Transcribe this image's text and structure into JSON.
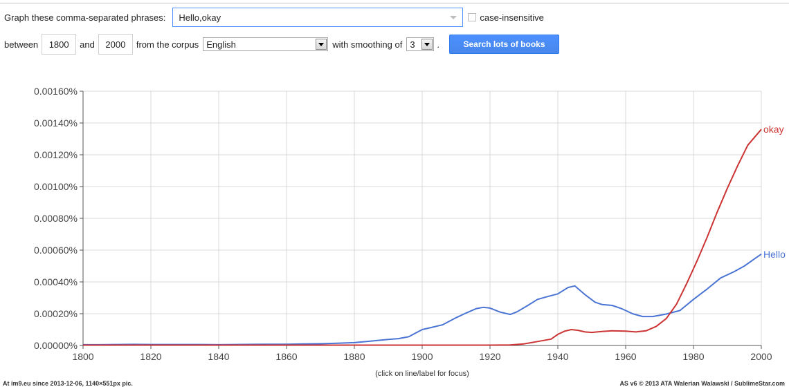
{
  "controls": {
    "phrases_label": "Graph these comma-separated phrases:",
    "phrases_value": "Hello,okay",
    "case_label": "case-insensitive",
    "between_label": "between",
    "start_year": "1800",
    "and_label": "and",
    "end_year": "2000",
    "corpus_label": "from the corpus",
    "corpus_value": "English",
    "smoothing_label": "with smoothing of",
    "smoothing_value": "3",
    "period": ".",
    "search_button": "Search lots of books"
  },
  "hint": "(click on line/label for focus)",
  "footer": {
    "left": "At im9.eu  since 2013-12-06, 1140×551px pic.",
    "right": "AS v6 © 2013 ATA Walerian Walawski / SublimeStar.com"
  },
  "chart_data": {
    "type": "line",
    "x_ticks": [
      1800,
      1820,
      1840,
      1860,
      1880,
      1900,
      1920,
      1940,
      1960,
      1980,
      2000
    ],
    "xlim": [
      1800,
      2000
    ],
    "ylim": [
      0,
      0.0016
    ],
    "y_ticks": [
      0,
      0.0002,
      0.0004,
      0.0006,
      0.0008,
      0.001,
      0.0012,
      0.0014,
      0.0016
    ],
    "y_tick_labels": [
      "0.00000%",
      "0.00020%",
      "0.00040%",
      "0.00060%",
      "0.00080%",
      "0.00100%",
      "0.00120%",
      "0.00140%",
      "0.00160%"
    ],
    "grid": true,
    "series": [
      {
        "name": "Hello",
        "color": "#4a74d4",
        "x": [
          1800,
          1805,
          1810,
          1815,
          1820,
          1825,
          1830,
          1835,
          1840,
          1845,
          1850,
          1855,
          1860,
          1865,
          1870,
          1875,
          1880,
          1885,
          1890,
          1893,
          1896,
          1900,
          1903,
          1906,
          1910,
          1913,
          1916,
          1918,
          1920,
          1923,
          1926,
          1928,
          1931,
          1934,
          1937,
          1940,
          1943,
          1945,
          1948,
          1951,
          1953,
          1956,
          1959,
          1962,
          1965,
          1968,
          1972,
          1976,
          1980,
          1984,
          1988,
          1992,
          1995,
          1998,
          2000
        ],
        "values": [
          5e-06,
          5e-06,
          6e-06,
          7e-06,
          6e-06,
          6e-06,
          6e-06,
          6e-06,
          5e-06,
          6e-06,
          7e-06,
          8e-06,
          8e-06,
          1e-05,
          1.1e-05,
          1.4e-05,
          1.8e-05,
          2.8e-05,
          3.8e-05,
          4.3e-05,
          5.5e-05,
          0.0001,
          0.000115,
          0.00013,
          0.000175,
          0.000205,
          0.000232,
          0.00024,
          0.000235,
          0.00021,
          0.000195,
          0.000212,
          0.00025,
          0.00029,
          0.000308,
          0.000325,
          0.000365,
          0.000375,
          0.00032,
          0.000272,
          0.000258,
          0.000252,
          0.00023,
          0.0002,
          0.000182,
          0.000182,
          0.000198,
          0.00022,
          0.00029,
          0.000355,
          0.000425,
          0.000465,
          0.0005,
          0.000545,
          0.000575
        ]
      },
      {
        "name": "okay",
        "color": "#cc3333",
        "x": [
          1800,
          1850,
          1900,
          1920,
          1926,
          1930,
          1934,
          1938,
          1940,
          1942,
          1944,
          1946,
          1948,
          1950,
          1953,
          1956,
          1960,
          1963,
          1966,
          1969,
          1972,
          1975,
          1978,
          1981,
          1984,
          1987,
          1990,
          1993,
          1996,
          1998,
          2000
        ],
        "values": [
          2e-06,
          2e-06,
          2e-06,
          2e-06,
          3e-06,
          1e-05,
          2.5e-05,
          4e-05,
          7e-05,
          9e-05,
          0.0001,
          9.5e-05,
          8.5e-05,
          8.2e-05,
          8.8e-05,
          9.2e-05,
          9e-05,
          8.5e-05,
          9.2e-05,
          0.00012,
          0.00017,
          0.00026,
          0.00039,
          0.00053,
          0.00068,
          0.00084,
          0.00099,
          0.00113,
          0.00126,
          0.00131,
          0.00136
        ]
      }
    ]
  }
}
